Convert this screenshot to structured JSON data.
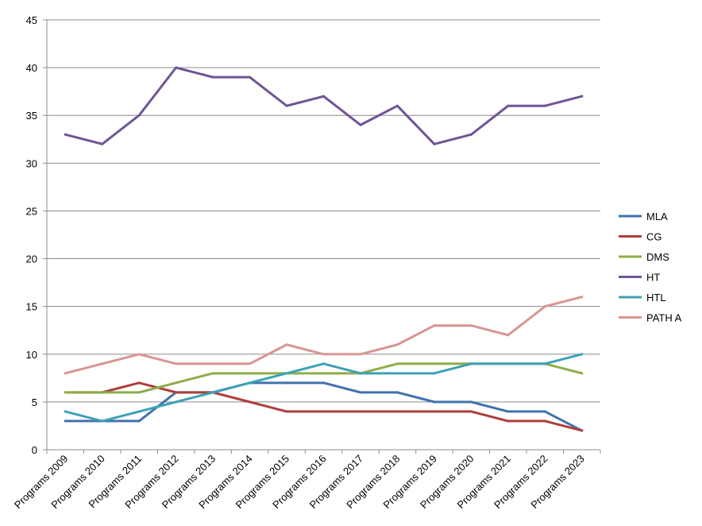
{
  "chart_data": {
    "type": "line",
    "categories": [
      "Programs 2009",
      "Programs 2010",
      "Programs 2011",
      "Programs 2012",
      "Programs 2013",
      "Programs 2014",
      "Programs 2015",
      "Programs 2016",
      "Programs 2017",
      "Programs 2018",
      "Programs 2019",
      "Programs 2020",
      "Programs 2021",
      "Programs 2022",
      "Programs 2023"
    ],
    "y_ticks": [
      "0",
      "5",
      "10",
      "15",
      "20",
      "25",
      "30",
      "35",
      "40",
      "45"
    ],
    "ylim": [
      0,
      45
    ],
    "grid": true,
    "legend_position": "right",
    "title": "",
    "xlabel": "",
    "ylabel": "",
    "series": [
      {
        "name": "MLA",
        "color": "#4172ad",
        "values": [
          3,
          3,
          3,
          6,
          6,
          7,
          7,
          7,
          6,
          6,
          5,
          5,
          4,
          4,
          2
        ]
      },
      {
        "name": "CG",
        "color": "#ad3f3c",
        "values": [
          6,
          6,
          7,
          6,
          6,
          5,
          4,
          4,
          4,
          4,
          4,
          4,
          3,
          3,
          2
        ]
      },
      {
        "name": "DMS",
        "color": "#8ead4a",
        "values": [
          6,
          6,
          6,
          7,
          8,
          8,
          8,
          8,
          8,
          9,
          9,
          9,
          9,
          9,
          8
        ]
      },
      {
        "name": "HT",
        "color": "#6f5595",
        "values": [
          33,
          32,
          35,
          40,
          39,
          39,
          36,
          37,
          34,
          36,
          32,
          33,
          36,
          36,
          37
        ]
      },
      {
        "name": "HTL",
        "color": "#3da1b6",
        "values": [
          4,
          3,
          4,
          5,
          6,
          7,
          8,
          9,
          8,
          8,
          8,
          9,
          9,
          9,
          10
        ]
      },
      {
        "name": "PATH A",
        "color": "#d99593",
        "values": [
          8,
          9,
          10,
          9,
          9,
          9,
          11,
          10,
          10,
          11,
          13,
          13,
          12,
          15,
          16
        ]
      }
    ]
  }
}
